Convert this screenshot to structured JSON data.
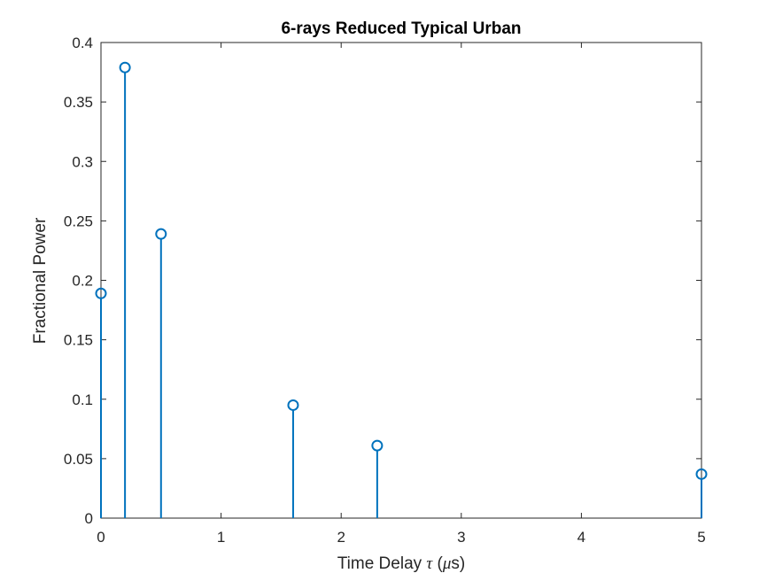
{
  "chart_data": {
    "type": "stem",
    "title": "6-rays Reduced Typical Urban",
    "xlabel": {
      "prefix": "Time Delay ",
      "symbol": "τ",
      "open": " (",
      "unit_symbol": "μ",
      "unit_rest": "s)"
    },
    "ylabel": "Fractional Power",
    "xlim": [
      0,
      5
    ],
    "ylim": [
      0,
      0.4
    ],
    "xticks": [
      0,
      1,
      2,
      3,
      4,
      5
    ],
    "xtick_labels": [
      "0",
      "1",
      "2",
      "3",
      "4",
      "5"
    ],
    "yticks": [
      0,
      0.05,
      0.1,
      0.15,
      0.2,
      0.25,
      0.3,
      0.35,
      0.4
    ],
    "ytick_labels": [
      "0",
      "0.05",
      "0.1",
      "0.15",
      "0.2",
      "0.25",
      "0.3",
      "0.35",
      "0.4"
    ],
    "grid": false,
    "marker": "circle",
    "color": "#0072BD",
    "x": [
      0,
      0.2,
      0.5,
      1.6,
      2.3,
      5.0
    ],
    "values": [
      0.189,
      0.379,
      0.239,
      0.095,
      0.061,
      0.037
    ]
  }
}
